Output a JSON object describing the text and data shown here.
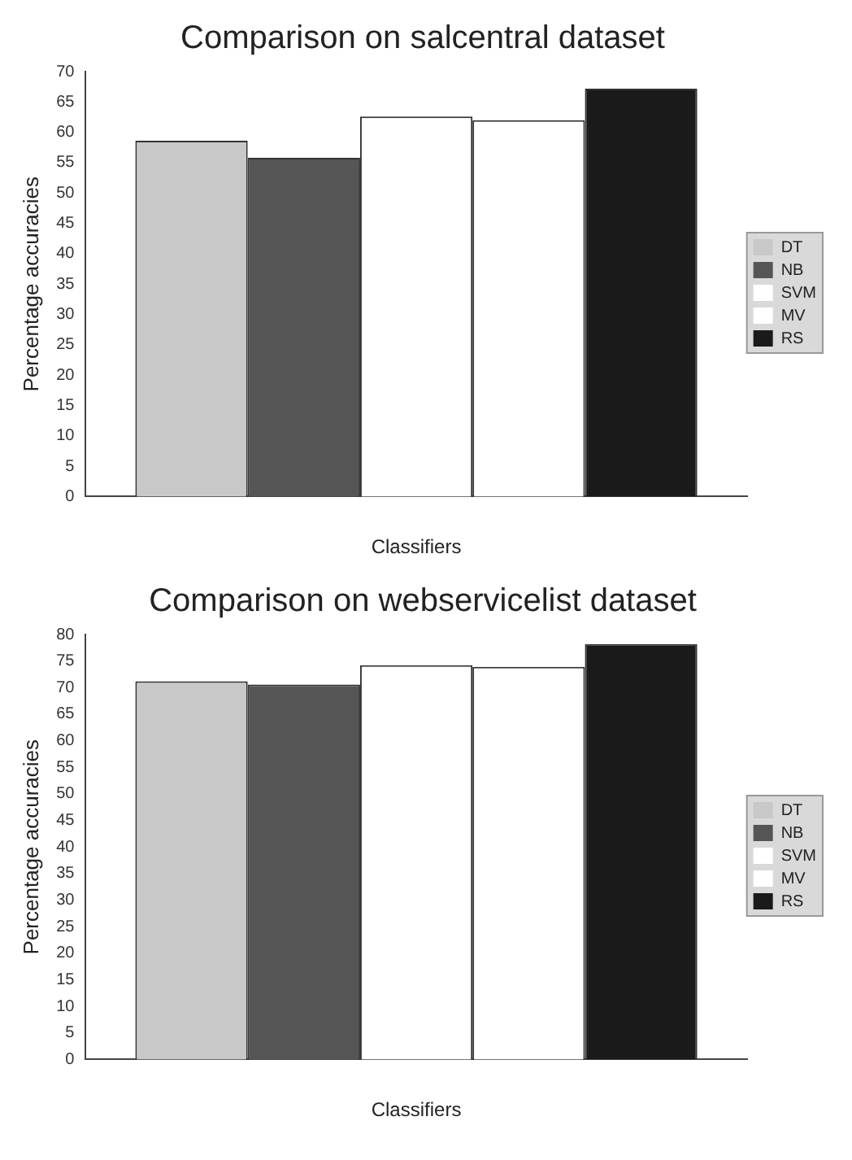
{
  "chart_data": [
    {
      "type": "bar",
      "title": "Comparison on salcentral dataset",
      "xlabel": "Classifiers",
      "ylabel": "Percentage accuracies",
      "categories": [
        null
      ],
      "series": [
        {
          "name": "DT",
          "color": "#c8c8c8",
          "values": [
            58.6
          ]
        },
        {
          "name": "NB",
          "color": "#555555",
          "values": [
            55.8
          ]
        },
        {
          "name": "SVM",
          "color": "#ffffff",
          "values": [
            62.6
          ]
        },
        {
          "name": "MV",
          "color": "#ffffff",
          "values": [
            62.0
          ]
        },
        {
          "name": "RS",
          "color": "#1a1a1a",
          "values": [
            67.2
          ]
        }
      ],
      "ylim": [
        0,
        70
      ],
      "yticks": [
        0,
        5,
        10,
        15,
        20,
        25,
        30,
        35,
        40,
        45,
        50,
        55,
        60,
        65,
        70
      ],
      "grid": false,
      "legend": "right"
    },
    {
      "type": "bar",
      "title": "Comparison on webservicelist dataset",
      "xlabel": "Classifiers",
      "ylabel": "Percentage accuracies",
      "categories": [
        null
      ],
      "series": [
        {
          "name": "DT",
          "color": "#c8c8c8",
          "values": [
            71.2
          ]
        },
        {
          "name": "NB",
          "color": "#555555",
          "values": [
            70.6
          ]
        },
        {
          "name": "SVM",
          "color": "#ffffff",
          "values": [
            74.2
          ]
        },
        {
          "name": "MV",
          "color": "#ffffff",
          "values": [
            73.9
          ]
        },
        {
          "name": "RS",
          "color": "#1a1a1a",
          "values": [
            78.2
          ]
        }
      ],
      "ylim": [
        0,
        80
      ],
      "yticks": [
        0,
        5,
        10,
        15,
        20,
        25,
        30,
        35,
        40,
        45,
        50,
        55,
        60,
        65,
        70,
        75,
        80
      ],
      "grid": false,
      "legend": "right"
    }
  ]
}
